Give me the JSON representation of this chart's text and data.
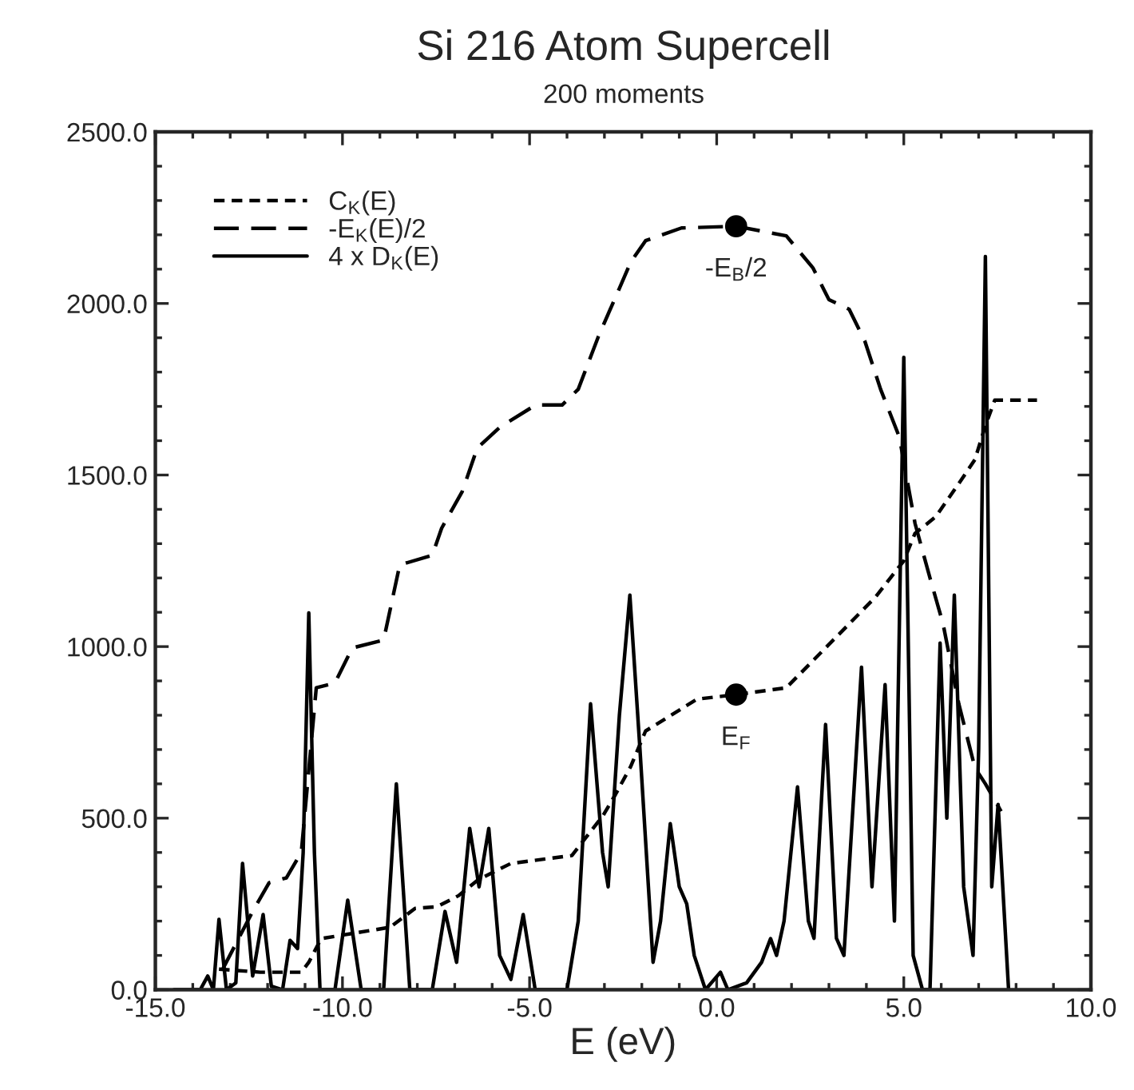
{
  "chart_data": {
    "type": "line",
    "title": "Si 216 Atom Supercell",
    "subtitle": "200 moments",
    "xlabel": "E (eV)",
    "xlim": [
      -15,
      10
    ],
    "xticks": [
      {
        "value": -15,
        "label": "-15.0"
      },
      {
        "value": -10,
        "label": "-10.0"
      },
      {
        "value": -5,
        "label": "-5.0"
      },
      {
        "value": 0,
        "label": "0.0"
      },
      {
        "value": 5,
        "label": "5.0"
      },
      {
        "value": 10,
        "label": "10.0"
      }
    ],
    "ylim": [
      0,
      2500
    ],
    "yticks": [
      {
        "value": 0,
        "label": "0.0"
      },
      {
        "value": 500,
        "label": "500.0"
      },
      {
        "value": 1000,
        "label": "1000.0"
      },
      {
        "value": 1500,
        "label": "1500.0"
      },
      {
        "value": 2000,
        "label": "2000.0"
      },
      {
        "value": 2500,
        "label": "2500.0"
      }
    ],
    "grid": false,
    "legend": "top left",
    "series": [
      {
        "name": "C$_{K}$(E)",
        "color": "#000000",
        "line_style": "dashed",
        "x": [
          -13.3,
          -12.2,
          -11.1,
          -10.9,
          -10.57,
          -8.73,
          -8.06,
          -7.47,
          -6.9,
          -6.37,
          -5.5,
          -3.87,
          -3.04,
          -2.7,
          -2.3,
          -1.9,
          -0.52,
          0.52,
          1.86,
          3.25,
          4.25,
          5.0,
          5.3,
          5.85,
          6.5,
          6.9,
          7.2,
          7.43,
          8.56
        ],
        "values": [
          60,
          51,
          51,
          80,
          149,
          182,
          237,
          242,
          274,
          321,
          368,
          391,
          507,
          570,
          650,
          754,
          847,
          860,
          880,
          1034,
          1145,
          1250,
          1330,
          1378,
          1480,
          1545,
          1650,
          1718,
          1718
        ]
      },
      {
        "name": "-E$_{K}$(E)/2",
        "color": "#000000",
        "line_style": "dashed",
        "x": [
          -13.2,
          -12.4,
          -11.96,
          -11.5,
          -11.1,
          -10.7,
          -10.2,
          -9.74,
          -8.9,
          -8.47,
          -7.6,
          -7.35,
          -6.8,
          -6.4,
          -5.8,
          -4.84,
          -4.13,
          -3.7,
          -3.16,
          -2.6,
          -2.3,
          -1.9,
          -0.94,
          0.52,
          1.86,
          2.57,
          3.0,
          3.54,
          3.96,
          4.38,
          4.88,
          5.3,
          5.7,
          6.05,
          6.47,
          6.9,
          7.18,
          7.6
        ],
        "values": [
          60,
          228,
          312,
          326,
          400,
          880,
          894,
          996,
          1019,
          1238,
          1266,
          1345,
          1452,
          1578,
          1639,
          1704,
          1704,
          1750,
          1904,
          2044,
          2120,
          2183,
          2220,
          2225,
          2197,
          2104,
          2011,
          1983,
          1890,
          1750,
          1611,
          1359,
          1200,
          1066,
          833,
          647,
          600,
          520
        ]
      },
      {
        "name": "4 x D$_{K}$(E)",
        "color": "#000000",
        "line_style": "solid",
        "x": [
          -14.5,
          -13.8,
          -13.6,
          -13.45,
          -13.3,
          -13.1,
          -12.85,
          -12.67,
          -12.4,
          -12.12,
          -11.9,
          -11.6,
          -11.4,
          -11.2,
          -11.05,
          -10.9,
          -10.75,
          -10.6,
          -10.2,
          -9.86,
          -9.5,
          -8.9,
          -8.56,
          -8.2,
          -7.6,
          -7.26,
          -6.95,
          -6.6,
          -6.35,
          -6.09,
          -5.8,
          -5.5,
          -5.17,
          -4.85,
          -4.0,
          -3.7,
          -3.37,
          -3.05,
          -2.9,
          -2.6,
          -2.32,
          -2.05,
          -1.7,
          -1.5,
          -1.24,
          -1.0,
          -0.8,
          -0.6,
          -0.3,
          0.1,
          0.3,
          0.8,
          1.2,
          1.44,
          1.6,
          1.8,
          2.16,
          2.45,
          2.6,
          2.91,
          3.2,
          3.4,
          3.87,
          4.15,
          4.5,
          4.75,
          5.0,
          5.25,
          5.5,
          5.7,
          5.97,
          6.15,
          6.35,
          6.6,
          6.85,
          7.0,
          7.18,
          7.35,
          7.52,
          7.8
        ],
        "values": [
          0,
          0,
          40,
          0,
          205,
          0,
          20,
          368,
          40,
          219,
          10,
          0,
          144,
          120,
          400,
          1098,
          400,
          0,
          0,
          261,
          0,
          0,
          600,
          0,
          0,
          228,
          80,
          470,
          300,
          470,
          100,
          30,
          219,
          0,
          0,
          200,
          833,
          400,
          300,
          800,
          1150,
          700,
          80,
          200,
          484,
          300,
          250,
          100,
          0,
          51,
          0,
          20,
          80,
          149,
          100,
          200,
          591,
          200,
          150,
          773,
          150,
          100,
          940,
          300,
          889,
          200,
          1843,
          100,
          0,
          0,
          1010,
          500,
          1150,
          300,
          100,
          700,
          2137,
          300,
          540,
          0
        ]
      }
    ],
    "annotations": [
      {
        "text": "-E$_{B}$/2",
        "x": 0.52,
        "y": 2225
      },
      {
        "text": "E$_{F}$",
        "x": 0.52,
        "y": 860
      }
    ]
  }
}
